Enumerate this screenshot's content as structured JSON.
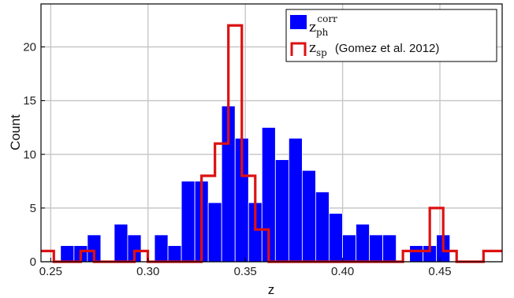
{
  "chart_data": {
    "type": "bar",
    "xlabel": "z",
    "ylabel": "Count",
    "xlim": [
      0.245,
      0.482
    ],
    "ylim": [
      0,
      24
    ],
    "grid": true,
    "legend_position": "top-right",
    "bin_width": 0.0069,
    "x_ticks": [
      "0.25",
      "0.30",
      "0.35",
      "0.40",
      "0.45"
    ],
    "x_tick_values": [
      0.25,
      0.3,
      0.35,
      0.4,
      0.45
    ],
    "y_ticks": [
      "0",
      "5",
      "10",
      "15",
      "20"
    ],
    "y_tick_values": [
      0,
      5,
      10,
      15,
      20
    ],
    "series": [
      {
        "name_main": "z",
        "name_sub": "ph",
        "name_sup": "corr",
        "kind": "filled-histogram",
        "color": "#0000ff",
        "bins": [
          {
            "x": 0.2585,
            "y": 1.5
          },
          {
            "x": 0.2654,
            "y": 1.5
          },
          {
            "x": 0.2723,
            "y": 2.5
          },
          {
            "x": 0.2861,
            "y": 3.5
          },
          {
            "x": 0.293,
            "y": 2.5
          },
          {
            "x": 0.3068,
            "y": 2.5
          },
          {
            "x": 0.3137,
            "y": 1.5
          },
          {
            "x": 0.3206,
            "y": 7.5
          },
          {
            "x": 0.3275,
            "y": 7.5
          },
          {
            "x": 0.3344,
            "y": 5.5
          },
          {
            "x": 0.3413,
            "y": 14.5
          },
          {
            "x": 0.3482,
            "y": 11.5
          },
          {
            "x": 0.3551,
            "y": 5.5
          },
          {
            "x": 0.362,
            "y": 12.5
          },
          {
            "x": 0.3689,
            "y": 9.5
          },
          {
            "x": 0.3758,
            "y": 11.5
          },
          {
            "x": 0.3827,
            "y": 8.5
          },
          {
            "x": 0.3896,
            "y": 6.5
          },
          {
            "x": 0.3965,
            "y": 4.5
          },
          {
            "x": 0.4034,
            "y": 2.5
          },
          {
            "x": 0.4103,
            "y": 3.5
          },
          {
            "x": 0.4172,
            "y": 2.5
          },
          {
            "x": 0.4241,
            "y": 2.5
          },
          {
            "x": 0.4379,
            "y": 1.5
          },
          {
            "x": 0.4448,
            "y": 1.5
          },
          {
            "x": 0.4517,
            "y": 2.5
          }
        ]
      },
      {
        "name_main": "z",
        "name_sub": "sp",
        "name_rest": "(Gomez et al. 2012)",
        "kind": "step-outline",
        "color": "#dd1111",
        "steps": [
          {
            "x0": 0.245,
            "x1": 0.2516,
            "y": 1
          },
          {
            "x0": 0.2516,
            "x1": 0.2654,
            "y": 0
          },
          {
            "x0": 0.2654,
            "x1": 0.2723,
            "y": 1
          },
          {
            "x0": 0.2723,
            "x1": 0.293,
            "y": 0
          },
          {
            "x0": 0.293,
            "x1": 0.2999,
            "y": 1
          },
          {
            "x0": 0.2999,
            "x1": 0.3275,
            "y": 0
          },
          {
            "x0": 0.3275,
            "x1": 0.3344,
            "y": 8
          },
          {
            "x0": 0.3344,
            "x1": 0.3413,
            "y": 11
          },
          {
            "x0": 0.3413,
            "x1": 0.3482,
            "y": 22
          },
          {
            "x0": 0.3482,
            "x1": 0.3551,
            "y": 8
          },
          {
            "x0": 0.3551,
            "x1": 0.362,
            "y": 3
          },
          {
            "x0": 0.362,
            "x1": 0.431,
            "y": 0
          },
          {
            "x0": 0.431,
            "x1": 0.4448,
            "y": 1
          },
          {
            "x0": 0.4448,
            "x1": 0.4517,
            "y": 5
          },
          {
            "x0": 0.4517,
            "x1": 0.4586,
            "y": 1
          },
          {
            "x0": 0.4586,
            "x1": 0.4724,
            "y": 0
          },
          {
            "x0": 0.4724,
            "x1": 0.482,
            "y": 1
          }
        ]
      }
    ]
  }
}
